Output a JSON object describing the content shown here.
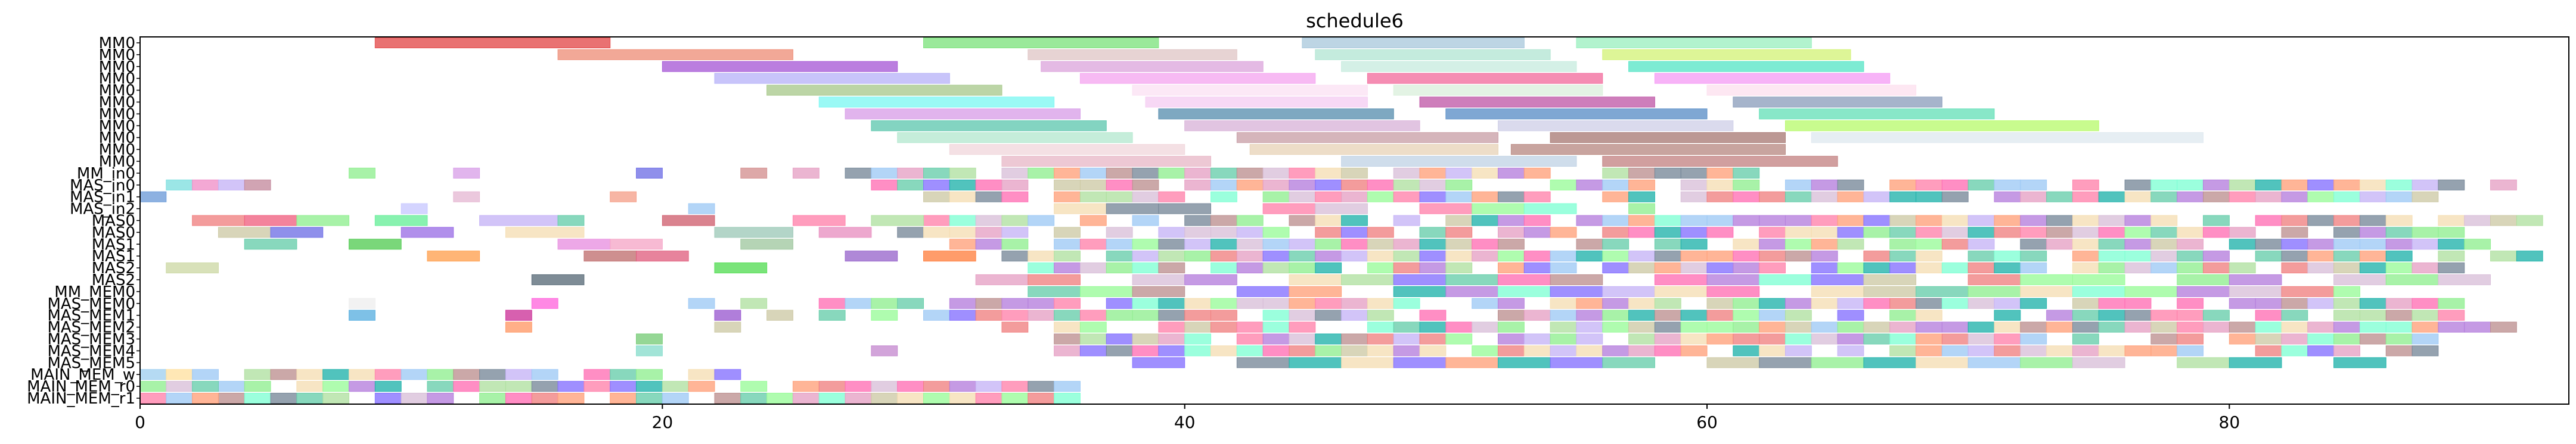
{
  "chart_data": {
    "type": "gantt",
    "title": "schedule6",
    "xlabel": "",
    "ylabel": "",
    "xlim": [
      0,
      93
    ],
    "x_ticks": [
      0,
      20,
      40,
      60,
      80
    ],
    "grid": false,
    "rows": [
      "MM0",
      "MM0",
      "MM0",
      "MM0",
      "MM0",
      "MM0",
      "MM0",
      "MM0",
      "MM0",
      "MM0",
      "MM0",
      "MM_in0",
      "MAS_in0",
      "MAS_in1",
      "MAS_in2",
      "MAS0",
      "MAS0",
      "MAS1",
      "MAS1",
      "MAS2",
      "MAS2",
      "MM_MEM0",
      "MAS_MEM0",
      "MAS_MEM1",
      "MAS_MEM2",
      "MAS_MEM3",
      "MAS_MEM4",
      "MAS_MEM5",
      "MAIN_MEM_w",
      "MAIN_MEM_r0",
      "MAIN_MEM_r1"
    ],
    "palette": [
      "#f08080",
      "#9ec9f5",
      "#b57edc",
      "#90ee90",
      "#d8bfd8",
      "#66cdaa",
      "#ff82ab",
      "#cdc9a5",
      "#778899",
      "#ffa07a",
      "#7fffd4",
      "#e6a0c4",
      "#c5b3f6",
      "#b0e0a0",
      "#ff6eb4",
      "#f5deb3",
      "#98fb98",
      "#8470ff",
      "#20b2aa",
      "#bc8f8f"
    ],
    "bars": [
      [
        0,
        9,
        18,
        "#e34a4a"
      ],
      [
        0,
        30,
        39,
        "#7ee37e"
      ],
      [
        0,
        44.5,
        53,
        "#aac9dd"
      ],
      [
        0,
        55,
        64,
        "#9cf0c0"
      ],
      [
        1,
        16,
        25,
        "#ee8f7a"
      ],
      [
        1,
        34,
        42,
        "#e0c7c7"
      ],
      [
        1,
        45,
        54,
        "#b4e6d4"
      ],
      [
        1,
        56,
        65.5,
        "#d4f27a"
      ],
      [
        2,
        20,
        29,
        "#a85ad6"
      ],
      [
        2,
        34.5,
        43,
        "#dda7dd"
      ],
      [
        2,
        46,
        55,
        "#c8ecdf"
      ],
      [
        2,
        57,
        66,
        "#59e5c7"
      ],
      [
        3,
        22,
        31,
        "#b8b4f8"
      ],
      [
        3,
        36,
        45,
        "#f5a7f0"
      ],
      [
        3,
        47,
        56,
        "#f26d9e"
      ],
      [
        3,
        58,
        67,
        "#f59df5"
      ],
      [
        4,
        24,
        33,
        "#a9c98d"
      ],
      [
        4,
        38,
        47,
        "#fbe2f3"
      ],
      [
        4,
        48,
        56,
        "#dbf0dc"
      ],
      [
        4,
        60,
        68,
        "#fde0ee"
      ],
      [
        5,
        26,
        35,
        "#7df7f2"
      ],
      [
        5,
        38.5,
        47,
        "#f5cdf2"
      ],
      [
        5,
        49,
        58,
        "#c05aa8"
      ],
      [
        5,
        61,
        69,
        "#8d9fbd"
      ],
      [
        6,
        27,
        36,
        "#d89fe8"
      ],
      [
        6,
        39,
        48,
        "#5a8fb0"
      ],
      [
        6,
        50,
        60,
        "#5b8ec7"
      ],
      [
        6,
        62,
        71,
        "#66e0b8"
      ],
      [
        7,
        28,
        37,
        "#60c8b0"
      ],
      [
        7,
        40,
        49,
        "#d9b3d9"
      ],
      [
        7,
        52,
        61,
        "#d0d0e8"
      ],
      [
        7,
        63,
        75,
        "#b8fa6e"
      ],
      [
        8,
        29,
        38,
        "#b5e8d0"
      ],
      [
        8,
        42,
        52,
        "#c9a0a8"
      ],
      [
        8,
        54,
        63,
        "#a97b76"
      ],
      [
        8,
        64,
        79,
        "#dfe9f0"
      ],
      [
        9,
        31,
        40,
        "#f1d7dc"
      ],
      [
        9,
        42.5,
        52,
        "#e8d4b8"
      ],
      [
        9,
        52.5,
        63,
        "#b98b84"
      ],
      [
        10,
        33,
        41,
        "#e8b8c8"
      ],
      [
        10,
        46,
        55,
        "#c2d3e6"
      ],
      [
        10,
        56,
        65,
        "#c48484"
      ],
      [
        11,
        8,
        9,
        "#90ee90"
      ],
      [
        11,
        12,
        13,
        "#d8a0e8"
      ],
      [
        11,
        19,
        20,
        "#6f6fe6"
      ],
      [
        11,
        23,
        24,
        "#d49090"
      ],
      [
        12,
        1,
        2,
        "#7fdfdf"
      ],
      [
        12,
        2,
        3,
        "#f08fc8"
      ],
      [
        12,
        3,
        4,
        "#c5b3f6"
      ],
      [
        12,
        4,
        5,
        "#c48a9e"
      ],
      [
        13,
        0,
        1,
        "#6d9bd8"
      ],
      [
        13,
        12,
        13,
        "#e6b8d4"
      ],
      [
        13,
        18,
        19,
        "#f5a08a"
      ],
      [
        14,
        10,
        11,
        "#c8c8ff"
      ],
      [
        14,
        21,
        22,
        "#9ec9f5"
      ],
      [
        15,
        2,
        4,
        "#f08080"
      ],
      [
        15,
        4,
        6,
        "#f06080"
      ],
      [
        15,
        6,
        8,
        "#90ee90"
      ],
      [
        15,
        9,
        11,
        "#66ee99"
      ],
      [
        15,
        13,
        16,
        "#c5b3f6"
      ],
      [
        15,
        16,
        17,
        "#66cdaa"
      ],
      [
        15,
        20,
        22,
        "#d06070"
      ],
      [
        15,
        25,
        27,
        "#ff82ab"
      ],
      [
        15,
        28,
        30,
        "#b0e0a0"
      ],
      [
        16,
        3,
        5,
        "#cdc9a5"
      ],
      [
        16,
        5,
        7,
        "#6f6fe6"
      ],
      [
        16,
        10,
        12,
        "#9b6fe6"
      ],
      [
        16,
        14,
        17,
        "#f5deb3"
      ],
      [
        16,
        22,
        25,
        "#9ec9b8"
      ],
      [
        16,
        26,
        28,
        "#e890c0"
      ],
      [
        17,
        4,
        6,
        "#66cdaa"
      ],
      [
        17,
        8,
        10,
        "#55cc55"
      ],
      [
        17,
        16,
        18,
        "#e890e0"
      ],
      [
        17,
        18,
        20,
        "#f5a7c7"
      ],
      [
        17,
        23,
        25,
        "#a0c8a0"
      ],
      [
        18,
        11,
        13,
        "#ffa050"
      ],
      [
        18,
        17,
        19,
        "#c07070"
      ],
      [
        18,
        19,
        21,
        "#e06080"
      ],
      [
        18,
        27,
        29,
        "#9966cc"
      ],
      [
        18,
        30,
        32,
        "#ff8040"
      ],
      [
        19,
        1,
        3,
        "#cdd9a5"
      ],
      [
        19,
        22,
        24,
        "#55dd55"
      ],
      [
        20,
        15,
        17,
        "#5a6b78"
      ],
      [
        22,
        8,
        9,
        "#eeeeee"
      ],
      [
        22,
        15,
        16,
        "#ff66dd"
      ],
      [
        22,
        21,
        22,
        "#9ec9f5"
      ],
      [
        22,
        23,
        24,
        "#b0e0a0"
      ],
      [
        23,
        8,
        9,
        "#5ab0e0"
      ],
      [
        23,
        14,
        15,
        "#cc3399"
      ],
      [
        23,
        22,
        23,
        "#9a5ad0"
      ],
      [
        23,
        24,
        25,
        "#cdc9a5"
      ],
      [
        24,
        14,
        15,
        "#ff9966"
      ],
      [
        24,
        22,
        23,
        "#cdc9a5"
      ],
      [
        25,
        19,
        20,
        "#77cc77"
      ],
      [
        26,
        19,
        20,
        "#88ddcc"
      ],
      [
        26,
        28,
        29,
        "#c58acf"
      ],
      [
        28,
        0,
        1,
        "#a0d0f0"
      ],
      [
        28,
        1,
        2,
        "#ffe0a0"
      ],
      [
        28,
        2,
        3,
        "#9ec9f5"
      ],
      [
        29,
        0,
        1,
        "#90ee90"
      ],
      [
        29,
        1,
        2,
        "#d8bfd8"
      ],
      [
        29,
        2,
        3,
        "#66cdaa"
      ],
      [
        30,
        0,
        1,
        "#ff82ab"
      ],
      [
        30,
        1,
        2,
        "#9ec9f5"
      ],
      [
        30,
        2,
        3,
        "#ffa07a"
      ]
    ],
    "dense_blocks": [
      [
        11,
        25,
        62,
        1
      ],
      [
        12,
        28,
        91,
        1
      ],
      [
        13,
        30,
        88,
        1
      ],
      [
        14,
        35,
        58,
        2
      ],
      [
        15,
        30,
        92,
        1
      ],
      [
        16,
        29,
        89,
        1
      ],
      [
        17,
        31,
        90,
        1
      ],
      [
        18,
        33,
        92,
        1
      ],
      [
        19,
        34,
        89,
        1
      ],
      [
        20,
        32,
        90,
        2
      ],
      [
        21,
        32,
        85,
        2
      ],
      [
        22,
        26,
        89,
        1
      ],
      [
        23,
        26,
        89,
        1
      ],
      [
        24,
        32,
        91,
        1
      ],
      [
        25,
        35,
        88,
        1
      ],
      [
        26,
        35,
        88,
        1
      ],
      [
        27,
        38,
        86,
        2
      ],
      [
        28,
        3,
        23,
        1
      ],
      [
        29,
        3,
        36,
        1
      ],
      [
        30,
        3,
        36,
        1
      ]
    ]
  }
}
